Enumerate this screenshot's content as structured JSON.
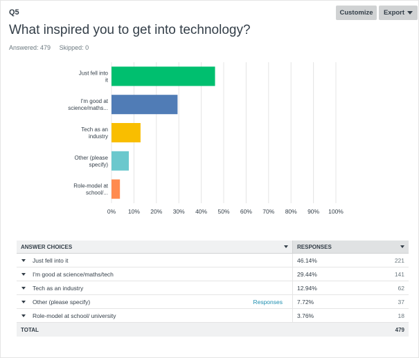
{
  "question": {
    "number": "Q5",
    "title": "What inspired you to get into technology?",
    "answered": "Answered: 479",
    "skipped": "Skipped: 0"
  },
  "toolbar": {
    "customize_label": "Customize",
    "export_label": "Export"
  },
  "colors": {
    "bar_green": "#00bf6f",
    "bar_blue": "#507cb6",
    "bar_yellow": "#f9be00",
    "bar_teal": "#6bc8cd",
    "bar_orange": "#ff8b4f",
    "grid": "#e4e4e4"
  },
  "chart_data": {
    "type": "bar",
    "orientation": "horizontal",
    "categories": [
      [
        "Just fell into",
        "it"
      ],
      [
        "I'm good at",
        "science/maths..."
      ],
      [
        "Tech as an",
        "industry"
      ],
      [
        "Other (please",
        "specify)"
      ],
      [
        "Role-model at",
        "school/..."
      ]
    ],
    "values": [
      46.14,
      29.44,
      12.94,
      7.72,
      3.76
    ],
    "bar_colors": [
      "#00bf6f",
      "#507cb6",
      "#f9be00",
      "#6bc8cd",
      "#ff8b4f"
    ],
    "x_ticks": [
      "0%",
      "10%",
      "20%",
      "30%",
      "40%",
      "50%",
      "60%",
      "70%",
      "80%",
      "90%",
      "100%"
    ],
    "xlim": [
      0,
      100
    ],
    "grid": true,
    "title": "",
    "xlabel": "",
    "ylabel": ""
  },
  "table": {
    "header_choices": "ANSWER CHOICES",
    "header_responses": "RESPONSES",
    "rows": [
      {
        "choice": "Just fell into it",
        "pct": "46.14%",
        "count": "221",
        "link": ""
      },
      {
        "choice": "I'm good at science/maths/tech",
        "pct": "29.44%",
        "count": "141",
        "link": ""
      },
      {
        "choice": "Tech as an industry",
        "pct": "12.94%",
        "count": "62",
        "link": ""
      },
      {
        "choice": "Other (please specify)",
        "pct": "7.72%",
        "count": "37",
        "link": "Responses"
      },
      {
        "choice": "Role-model at school/ university",
        "pct": "3.76%",
        "count": "18",
        "link": ""
      }
    ],
    "total_label": "TOTAL",
    "total_count": "479"
  }
}
